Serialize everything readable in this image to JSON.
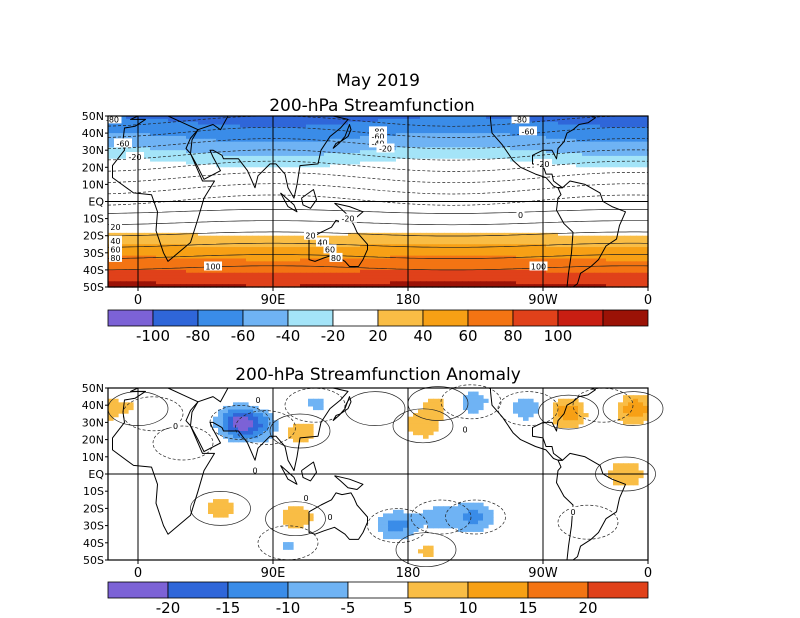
{
  "page_title": "May 2019",
  "chart_data": [
    {
      "type": "heatmap",
      "title": "200-hPa Streamfunction",
      "y_tick_labels": [
        "50N",
        "40N",
        "30N",
        "20N",
        "10N",
        "EQ",
        "10S",
        "20S",
        "30S",
        "40S",
        "50S"
      ],
      "x_tick_labels": [
        "0",
        "90E",
        "180",
        "90W",
        "0"
      ],
      "legend_levels": [
        -100,
        -80,
        -60,
        -40,
        -20,
        20,
        40,
        60,
        80,
        100
      ],
      "legend_labels": [
        "-100",
        "-80",
        "-60",
        "-40",
        "-20",
        "20",
        "40",
        "60",
        "80",
        "100"
      ],
      "legend_colors": [
        "#7c62d6",
        "#2f66d9",
        "#3a8ce8",
        "#6fb3f4",
        "#a4e4f8",
        "#ffffff",
        "#f9bd45",
        "#f7a015",
        "#f37413",
        "#e0411a",
        "#c81e12",
        "#9b1206"
      ],
      "bands": [
        {
          "lat": 50,
          "value": -90
        },
        {
          "lat": 45,
          "value": -75
        },
        {
          "lat": 40,
          "value": -65
        },
        {
          "lat": 35,
          "value": -55
        },
        {
          "lat": 30,
          "value": -42
        },
        {
          "lat": 25,
          "value": -28
        },
        {
          "lat": 20,
          "value": -12
        },
        {
          "lat": 10,
          "value": -5
        },
        {
          "lat": 0,
          "value": 0
        },
        {
          "lat": -10,
          "value": 5
        },
        {
          "lat": -20,
          "value": 22
        },
        {
          "lat": -25,
          "value": 38
        },
        {
          "lat": -30,
          "value": 52
        },
        {
          "lat": -35,
          "value": 65
        },
        {
          "lat": -40,
          "value": 78
        },
        {
          "lat": -45,
          "value": 92
        },
        {
          "lat": -50,
          "value": 105
        }
      ],
      "contour_labels": [
        "-80",
        "-80",
        "-80",
        "-60",
        "-60",
        "-60",
        "-40",
        "-20",
        "-20",
        "-20",
        "-20",
        "0",
        "20",
        "20",
        "40",
        "40",
        "60",
        "60",
        "80",
        "80",
        "100",
        "100"
      ]
    },
    {
      "type": "heatmap",
      "title": "200-hPa Streamfunction Anomaly",
      "y_tick_labels": [
        "50N",
        "40N",
        "30N",
        "20N",
        "10N",
        "EQ",
        "10S",
        "20S",
        "30S",
        "40S",
        "50S"
      ],
      "x_tick_labels": [
        "0",
        "90E",
        "180",
        "90W",
        "0"
      ],
      "legend_levels": [
        -20,
        -15,
        -10,
        -5,
        5,
        10,
        15,
        20
      ],
      "legend_labels": [
        "-20",
        "-15",
        "-10",
        "-5",
        "5",
        "10",
        "15",
        "20"
      ],
      "legend_colors": [
        "#7c62d6",
        "#2f66d9",
        "#3a8ce8",
        "#6fb3f4",
        "#ffffff",
        "#f9bd45",
        "#f7a015",
        "#f37413",
        "#e0411a"
      ],
      "anomalies": [
        {
          "lon": 0,
          "lat": 38,
          "value": 8
        },
        {
          "lon": 10,
          "lat": 35,
          "value": -8
        },
        {
          "lon": 68,
          "lat": 30,
          "value": -22
        },
        {
          "lon": 85,
          "lat": 27,
          "value": -8
        },
        {
          "lon": 30,
          "lat": 18,
          "value": -4
        },
        {
          "lon": 108,
          "lat": 25,
          "value": 9
        },
        {
          "lon": 118,
          "lat": 40,
          "value": -6
        },
        {
          "lon": 158,
          "lat": 38,
          "value": 5
        },
        {
          "lon": 190,
          "lat": 28,
          "value": 8
        },
        {
          "lon": 200,
          "lat": 41,
          "value": 6
        },
        {
          "lon": 222,
          "lat": 42,
          "value": -8
        },
        {
          "lon": 260,
          "lat": 38,
          "value": -8
        },
        {
          "lon": 287,
          "lat": 36,
          "value": 14
        },
        {
          "lon": 330,
          "lat": 38,
          "value": 14
        },
        {
          "lon": 310,
          "lat": 40,
          "value": -6
        },
        {
          "lon": 325,
          "lat": 0,
          "value": 9
        },
        {
          "lon": 300,
          "lat": -28,
          "value": -4
        },
        {
          "lon": 105,
          "lat": -26,
          "value": 9
        },
        {
          "lon": 55,
          "lat": -20,
          "value": 7
        },
        {
          "lon": 173,
          "lat": -30,
          "value": -12
        },
        {
          "lon": 202,
          "lat": -25,
          "value": -8
        },
        {
          "lon": 225,
          "lat": -25,
          "value": -11
        },
        {
          "lon": 100,
          "lat": -40,
          "value": -6
        },
        {
          "lon": 192,
          "lat": -44,
          "value": 6
        }
      ],
      "contour_labels": [
        "0",
        "0",
        "0",
        "0",
        "0",
        "0",
        "0"
      ]
    }
  ]
}
